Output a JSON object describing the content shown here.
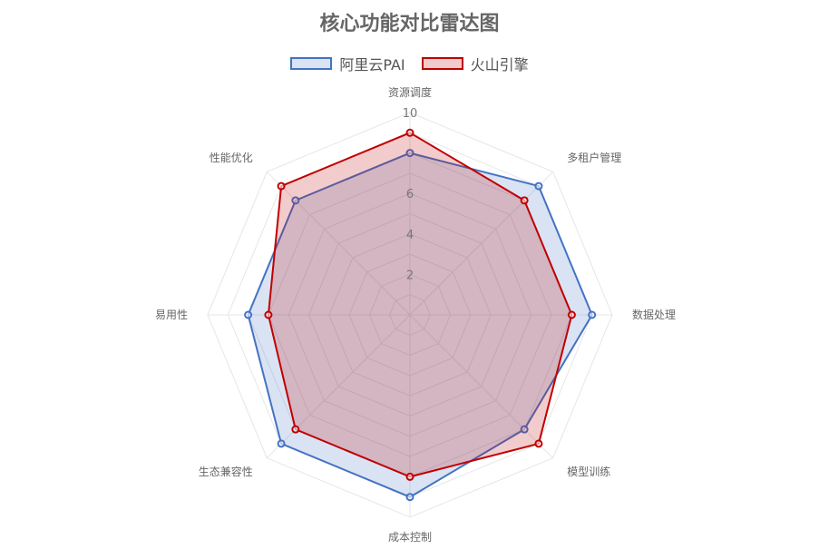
{
  "chart_data": {
    "type": "radar",
    "title": "核心功能对比雷达图",
    "axes": [
      "资源调度",
      "多租户管理",
      "数据处理",
      "模型训练",
      "成本控制",
      "生态兼容性",
      "易用性",
      "性能优化"
    ],
    "r_min": 0,
    "r_max": 10,
    "ticks": [
      "2",
      "4",
      "6",
      "10"
    ],
    "tick_values": [
      2,
      4,
      6,
      10
    ],
    "grid": true,
    "legend": "top",
    "series": [
      {
        "name": "阿里云PAI",
        "values": [
          8,
          9,
          9,
          8,
          9,
          9,
          8,
          8
        ],
        "color": "#4472c4",
        "fill": "rgba(68,114,196,0.2)"
      },
      {
        "name": "火山引擎",
        "values": [
          9,
          8,
          8,
          9,
          8,
          8,
          7,
          9
        ],
        "color": "#c00000",
        "fill": "rgba(192,0,0,0.2)"
      }
    ]
  }
}
